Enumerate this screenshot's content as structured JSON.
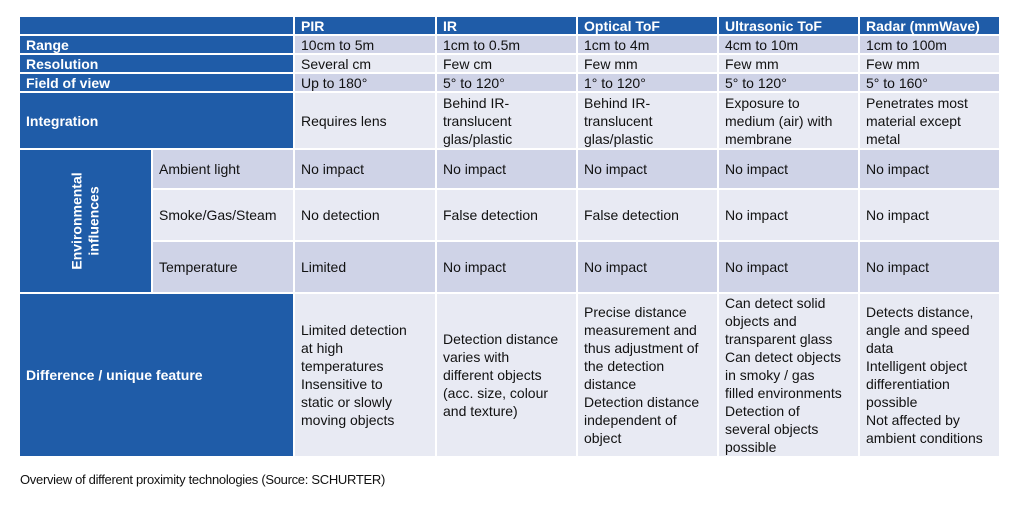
{
  "table": {
    "columns": [
      "PIR",
      "IR",
      "Optical ToF",
      "Ultrasonic ToF",
      "Radar (mmWave)"
    ],
    "group_label": "Environmental\ninfluences",
    "rows": [
      {
        "label": "Range",
        "cells": [
          "10cm to 5m",
          "1cm to 0.5m",
          "1cm to 4m",
          "4cm to 10m",
          "1cm to 100m"
        ]
      },
      {
        "label": "Resolution",
        "cells": [
          "Several cm",
          "Few cm",
          "Few mm",
          "Few mm",
          "Few mm"
        ]
      },
      {
        "label": "Field of view",
        "cells": [
          "Up to 180°",
          "5° to 120°",
          "1° to 120°",
          "5° to 120°",
          "5° to 160°"
        ]
      },
      {
        "label": "Integration",
        "cells": [
          "Requires lens",
          "Behind IR-\ntranslucent\nglas/plastic",
          "Behind IR-\ntranslucent\nglas/plastic",
          "Exposure to\nmedium (air) with\nmembrane",
          "Penetrates most\nmaterial except\nmetal"
        ]
      },
      {
        "sublabel": "Ambient light",
        "cells": [
          "No impact",
          "No impact",
          "No impact",
          "No impact",
          "No impact"
        ]
      },
      {
        "sublabel": "Smoke/Gas/Steam",
        "cells": [
          "No detection",
          "False detection",
          "False detection",
          "No impact",
          "No impact"
        ]
      },
      {
        "sublabel": "Temperature",
        "cells": [
          "Limited",
          "No impact",
          "No impact",
          "No impact",
          "No impact"
        ]
      },
      {
        "label": "Difference / unique feature",
        "cells": [
          "Limited detection\nat high\ntemperatures\nInsensitive to\nstatic or slowly\nmoving objects",
          "Detection distance\nvaries with\ndifferent objects\n(acc. size, colour\nand texture)",
          "Precise distance\nmeasurement and\nthus adjustment of\nthe detection\ndistance\nDetection distance\nindependent of\nobject",
          "Can detect solid\nobjects and\ntransparent glass\nCan detect objects\nin smoky / gas\nfilled environments\nDetection of\nseveral objects\npossible",
          "Detects distance,\nangle and speed\ndata\nIntelligent object\ndifferentiation\npossible\nNot affected by\nambient conditions"
        ]
      }
    ]
  },
  "caption": "Overview of different proximity technologies (Source: SCHURTER)"
}
